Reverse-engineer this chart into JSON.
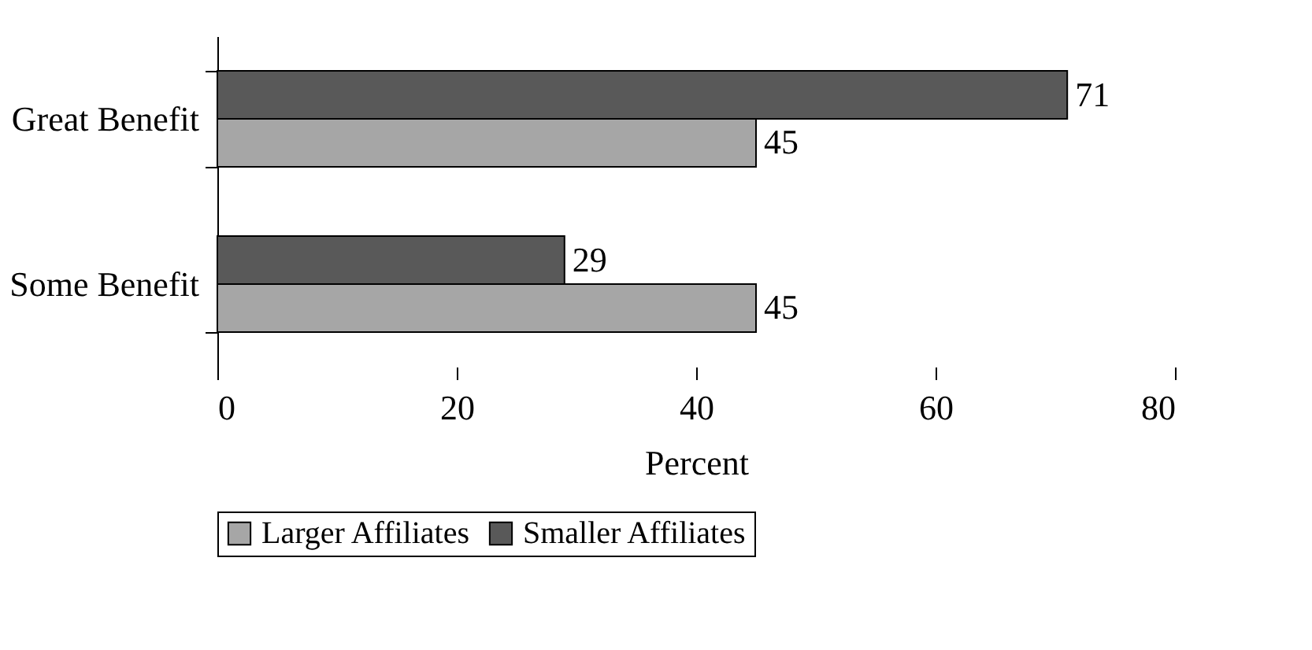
{
  "chart_data": {
    "type": "bar",
    "orientation": "horizontal",
    "categories": [
      "Great Benefit",
      "Some Benefit"
    ],
    "series": [
      {
        "name": "Larger Affiliates",
        "color": "#a6a6a6",
        "values": [
          45,
          45
        ]
      },
      {
        "name": "Smaller Affiliates",
        "color": "#595959",
        "values": [
          71,
          29
        ]
      }
    ],
    "xlabel": "Percent",
    "xlim": [
      0,
      80
    ],
    "xticks": [
      0,
      20,
      40,
      60,
      80
    ],
    "data_labels": true,
    "legend": "bottom",
    "grid": false
  }
}
